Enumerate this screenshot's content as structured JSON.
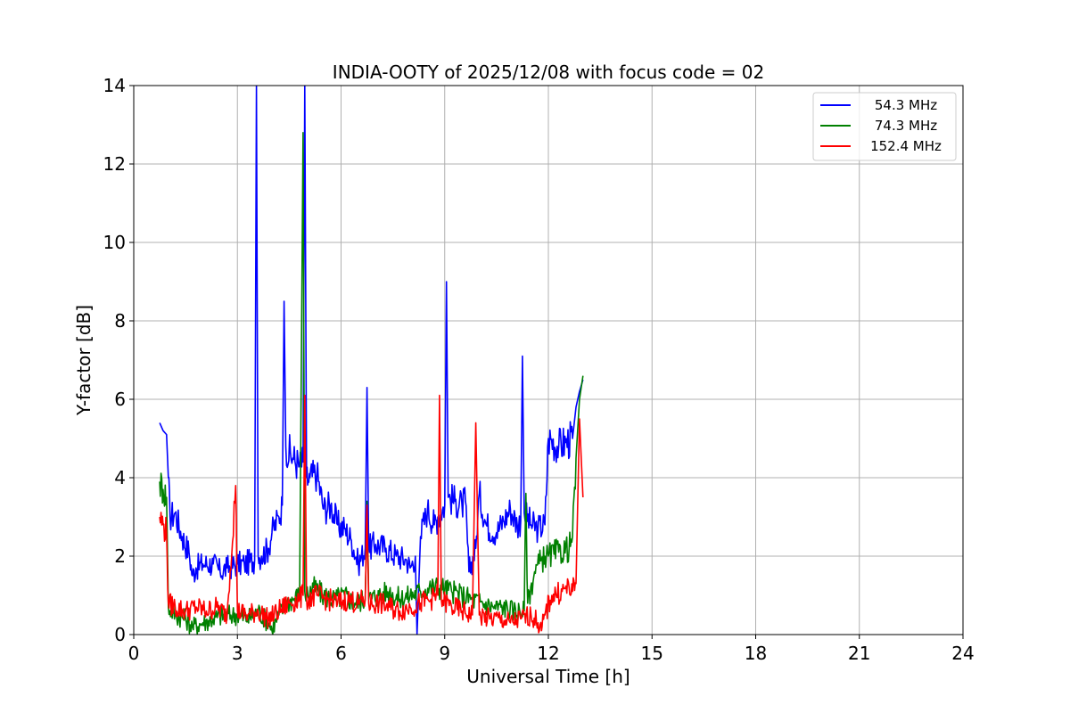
{
  "chart_data": {
    "type": "line",
    "title": "INDIA-OOTY of 2025/12/08 with focus code = 02",
    "xlabel": "Universal Time [h]",
    "ylabel": "Y-factor [dB]",
    "xlim": [
      0,
      24
    ],
    "ylim": [
      0,
      14
    ],
    "xticks": [
      0,
      3,
      6,
      9,
      12,
      15,
      18,
      21,
      24
    ],
    "yticks": [
      0,
      2,
      4,
      6,
      8,
      10,
      12,
      14
    ],
    "grid": true,
    "legend_position": "top-right",
    "series": [
      {
        "name": "54.3 MHz",
        "color": "#0000ff",
        "x": [
          0.75,
          0.85,
          0.95,
          1.0,
          1.05,
          1.2,
          1.4,
          1.6,
          1.7,
          1.8,
          2.0,
          2.3,
          2.5,
          2.7,
          3.0,
          3.2,
          3.5,
          3.55,
          3.6,
          3.7,
          3.9,
          4.0,
          4.2,
          4.3,
          4.35,
          4.4,
          4.6,
          4.8,
          4.9,
          4.95,
          5.0,
          5.05,
          5.1,
          5.3,
          5.5,
          5.7,
          5.9,
          6.1,
          6.3,
          6.5,
          6.7,
          6.75,
          6.8,
          7.0,
          7.3,
          7.6,
          7.9,
          8.0,
          8.15,
          8.2,
          8.3,
          8.5,
          8.7,
          8.8,
          9.0,
          9.05,
          9.1,
          9.3,
          9.5,
          9.6,
          9.7,
          9.9,
          10.0,
          10.2,
          10.5,
          10.7,
          10.9,
          11.1,
          11.2,
          11.25,
          11.3,
          11.5,
          11.7,
          11.9,
          12.0,
          12.3,
          12.5,
          12.7,
          12.8,
          12.9,
          13.0
        ],
        "values": [
          5.4,
          5.2,
          5.1,
          4.0,
          3.0,
          3.1,
          2.5,
          2.1,
          1.5,
          1.7,
          1.8,
          1.8,
          1.6,
          1.7,
          1.8,
          1.8,
          1.9,
          14.0,
          2.0,
          2.0,
          2.2,
          2.6,
          3.0,
          3.3,
          8.5,
          4.8,
          4.5,
          4.3,
          4.4,
          14.0,
          4.0,
          3.9,
          4.0,
          4.1,
          3.2,
          3.3,
          2.8,
          2.7,
          2.4,
          1.8,
          2.2,
          6.3,
          2.2,
          2.3,
          2.2,
          2.0,
          1.9,
          1.7,
          2.0,
          0.0,
          2.5,
          3.2,
          2.8,
          3.0,
          3.3,
          9.0,
          3.5,
          3.4,
          3.3,
          3.4,
          1.6,
          2.2,
          3.6,
          2.8,
          2.6,
          2.9,
          3.2,
          2.8,
          2.9,
          7.1,
          3.1,
          2.8,
          2.7,
          2.8,
          5.0,
          4.8,
          4.9,
          5.0,
          5.8,
          6.2,
          6.5
        ]
      },
      {
        "name": "74.3 MHz",
        "color": "#008000",
        "x": [
          0.75,
          0.85,
          0.95,
          1.0,
          1.2,
          1.5,
          1.7,
          2.0,
          2.3,
          2.6,
          3.0,
          3.3,
          3.6,
          3.9,
          4.0,
          4.2,
          4.4,
          4.6,
          4.8,
          4.9,
          4.95,
          5.0,
          5.2,
          5.5,
          5.8,
          6.1,
          6.4,
          6.7,
          6.75,
          6.8,
          7.1,
          7.4,
          7.7,
          8.0,
          8.3,
          8.6,
          8.9,
          9.2,
          9.5,
          9.8,
          10.1,
          10.4,
          10.7,
          11.0,
          11.3,
          11.35,
          11.4,
          11.6,
          11.8,
          11.9,
          12.0,
          12.3,
          12.6,
          12.7,
          12.8,
          12.9,
          13.0
        ],
        "values": [
          3.9,
          3.7,
          3.5,
          0.7,
          0.5,
          0.4,
          0.2,
          0.3,
          0.4,
          0.5,
          0.5,
          0.4,
          0.6,
          0.3,
          0.1,
          0.5,
          0.8,
          0.9,
          1.0,
          12.8,
          1.1,
          1.0,
          1.2,
          1.0,
          0.9,
          1.0,
          0.8,
          0.9,
          3.4,
          0.9,
          1.0,
          1.1,
          0.9,
          1.0,
          1.1,
          1.2,
          1.2,
          1.1,
          1.0,
          0.9,
          0.8,
          0.7,
          0.7,
          0.6,
          0.6,
          3.6,
          0.8,
          1.6,
          1.9,
          2.0,
          2.0,
          2.1,
          2.2,
          2.5,
          4.5,
          6.0,
          6.6
        ]
      },
      {
        "name": "152.4 MHz",
        "color": "#ff0000",
        "x": [
          0.75,
          0.85,
          0.95,
          1.0,
          1.2,
          1.5,
          1.8,
          2.1,
          2.4,
          2.7,
          2.95,
          3.0,
          3.3,
          3.6,
          3.9,
          4.2,
          4.5,
          4.8,
          4.9,
          4.95,
          5.0,
          5.3,
          5.6,
          5.9,
          6.2,
          6.5,
          6.7,
          6.75,
          6.8,
          7.1,
          7.4,
          7.7,
          8.0,
          8.3,
          8.6,
          8.8,
          8.85,
          8.9,
          9.2,
          9.5,
          9.8,
          9.9,
          10.0,
          10.3,
          10.6,
          10.9,
          11.2,
          11.5,
          11.7,
          11.8,
          11.9,
          12.1,
          12.4,
          12.6,
          12.7,
          12.8,
          12.9,
          13.0
        ],
        "values": [
          3.0,
          2.8,
          2.6,
          0.8,
          0.7,
          0.6,
          0.7,
          0.6,
          0.7,
          0.5,
          3.8,
          0.6,
          0.5,
          0.6,
          0.4,
          0.6,
          0.8,
          0.9,
          1.0,
          6.1,
          0.9,
          1.0,
          0.9,
          0.8,
          0.9,
          0.8,
          0.9,
          3.3,
          0.8,
          0.8,
          0.7,
          0.6,
          0.7,
          0.8,
          0.9,
          1.0,
          6.1,
          0.9,
          0.7,
          0.6,
          0.5,
          5.4,
          0.5,
          0.4,
          0.4,
          0.3,
          0.4,
          0.5,
          0.3,
          0.1,
          0.5,
          1.0,
          1.1,
          1.2,
          1.1,
          1.3,
          5.5,
          3.5
        ]
      }
    ]
  }
}
